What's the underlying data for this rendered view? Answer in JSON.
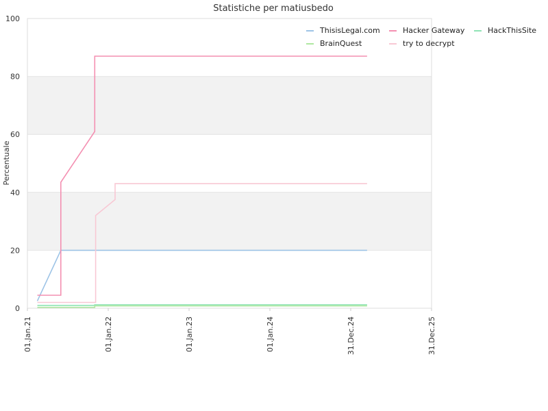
{
  "chart_data": {
    "type": "line",
    "title": "Statistiche per matiusbedo",
    "xlabel": "",
    "ylabel": "Percentuale",
    "ylim": [
      0,
      100
    ],
    "yticks": [
      0,
      20,
      40,
      60,
      80,
      100
    ],
    "xlim": [
      "2021-01-01",
      "2025-12-31"
    ],
    "xticks": [
      {
        "date": "2021-01-01",
        "label": "01.Jan.21"
      },
      {
        "date": "2022-01-01",
        "label": "01.Jan.22"
      },
      {
        "date": "2023-01-01",
        "label": "01.Jan.23"
      },
      {
        "date": "2024-01-01",
        "label": "01.Jan.24"
      },
      {
        "date": "2024-12-31",
        "label": "31.Dec.24"
      },
      {
        "date": "2025-12-31",
        "label": "31.Dec.25"
      }
    ],
    "grid": "horizontal bands alternating",
    "legend_position": "top-right",
    "series": [
      {
        "name": "ThisisLegal.com",
        "color": "#9dc3e6",
        "points": [
          [
            "2021-02-15",
            2.5
          ],
          [
            "2021-06-01",
            20
          ],
          [
            "2025-03-15",
            20
          ]
        ]
      },
      {
        "name": "Hacker Gateway",
        "color": "#f48fb1",
        "points": [
          [
            "2021-02-15",
            4.5
          ],
          [
            "2021-06-01",
            4.5
          ],
          [
            "2021-06-01",
            43.5
          ],
          [
            "2021-11-01",
            61
          ],
          [
            "2021-11-01",
            87
          ],
          [
            "2025-03-15",
            87
          ]
        ]
      },
      {
        "name": "HackThisSite",
        "color": "#8fe3b5",
        "points": [
          [
            "2021-02-15",
            1
          ],
          [
            "2021-11-01",
            1
          ],
          [
            "2021-11-01",
            1.2
          ],
          [
            "2025-03-15",
            1.2
          ]
        ]
      },
      {
        "name": "BrainQuest",
        "color": "#aee8a0",
        "points": [
          [
            "2021-02-15",
            0.3
          ],
          [
            "2021-11-01",
            0.3
          ],
          [
            "2021-11-01",
            0.8
          ],
          [
            "2025-03-15",
            0.8
          ]
        ]
      },
      {
        "name": "try to decrypt",
        "color": "#f8c8d4",
        "points": [
          [
            "2021-02-15",
            2
          ],
          [
            "2021-11-05",
            2
          ],
          [
            "2021-11-05",
            32
          ],
          [
            "2022-02-01",
            37.5
          ],
          [
            "2022-02-01",
            43
          ],
          [
            "2025-03-15",
            43
          ]
        ]
      }
    ]
  }
}
